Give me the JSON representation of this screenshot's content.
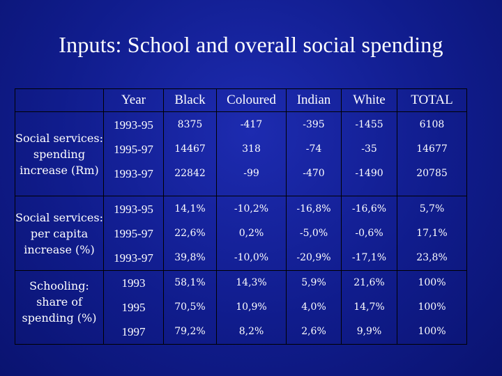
{
  "title": "Inputs: School and overall social spending",
  "headers": [
    "Year",
    "Black",
    "Coloured",
    "Indian",
    "White",
    "TOTAL"
  ],
  "groups": [
    {
      "label": "Social services: spending increase (Rm)",
      "rows": [
        {
          "year": "1993-95",
          "black": "8375",
          "coloured": "-417",
          "indian": "-395",
          "white": "-1455",
          "total": "6108"
        },
        {
          "year": "1995-97",
          "black": "14467",
          "coloured": "318",
          "indian": "-74",
          "white": "-35",
          "total": "14677"
        },
        {
          "year": "1993-97",
          "black": "22842",
          "coloured": "-99",
          "indian": "-470",
          "white": "-1490",
          "total": "20785"
        }
      ]
    },
    {
      "label": "Social services: per capita increase (%)",
      "rows": [
        {
          "year": "1993-95",
          "black": "14,1%",
          "coloured": "-10,2%",
          "indian": "-16,8%",
          "white": "-16,6%",
          "total": "5,7%"
        },
        {
          "year": "1995-97",
          "black": "22,6%",
          "coloured": "0,2%",
          "indian": "-5,0%",
          "white": "-0,6%",
          "total": "17,1%"
        },
        {
          "year": "1993-97",
          "black": "39,8%",
          "coloured": "-10,0%",
          "indian": "-20,9%",
          "white": "-17,1%",
          "total": "23,8%"
        }
      ]
    },
    {
      "label": "Schooling: share of spending (%)",
      "rows": [
        {
          "year": "1993",
          "black": "58,1%",
          "coloured": "14,3%",
          "indian": "5,9%",
          "white": "21,6%",
          "total": "100%"
        },
        {
          "year": "1995",
          "black": "70,5%",
          "coloured": "10,9%",
          "indian": "4,0%",
          "white": "14,7%",
          "total": "100%"
        },
        {
          "year": "1997",
          "black": "79,2%",
          "coloured": "8,2%",
          "indian": "2,6%",
          "white": "9,9%",
          "total": "100%"
        }
      ]
    }
  ],
  "colors": {
    "background": "#101c8c",
    "text": "#ffffff",
    "grid": "#000000"
  }
}
